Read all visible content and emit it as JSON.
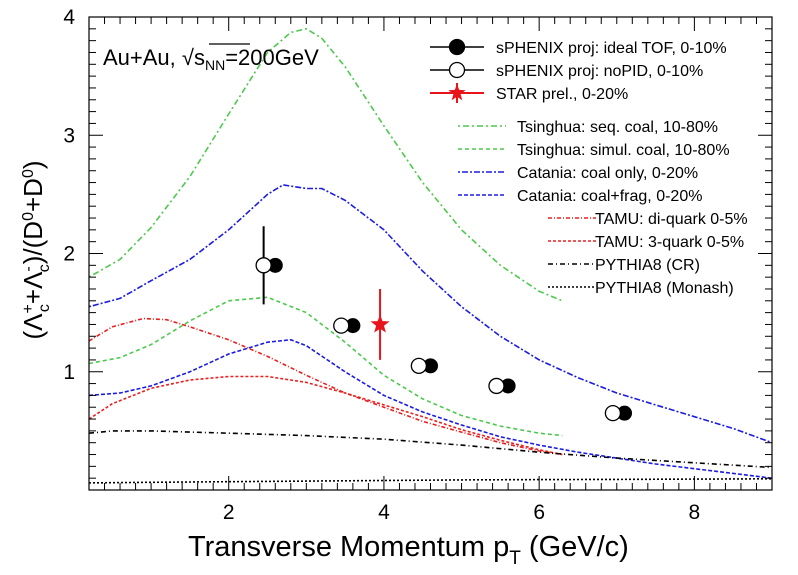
{
  "chart_data": {
    "type": "line",
    "annotation_text": "Au+Au, ",
    "annotation_sqrt": "√",
    "annotation_s": "s",
    "annotation_sub": "NN",
    "annotation_energy": "=200GeV",
    "xlabel": {
      "main": "Transverse Momentum p",
      "sub": "T",
      "unit": " (GeV/c)"
    },
    "ylabel": "(Λc⁺+Λc⁻)/(D⁰+D⁰)",
    "xlim": [
      0.2,
      9.0
    ],
    "ylim": [
      0.0,
      4.0
    ],
    "x_ticks": [
      2,
      4,
      6,
      8
    ],
    "y_ticks": [
      1,
      2,
      3,
      4
    ],
    "legend_position": "top-right",
    "series": [
      {
        "name": "sPHENIX proj: ideal TOF, 0-10%",
        "kind": "marker",
        "marker": "filled-circle",
        "color": "#000000",
        "x": [
          2.6,
          3.6,
          4.6,
          5.6,
          7.1
        ],
        "y": [
          1.9,
          1.39,
          1.05,
          0.88,
          0.65
        ]
      },
      {
        "name": "sPHENIX proj: noPID, 0-10%",
        "kind": "marker",
        "marker": "open-circle",
        "color": "#000000",
        "x": [
          2.45,
          3.45,
          4.45,
          5.45,
          6.95
        ],
        "y": [
          1.9,
          1.39,
          1.05,
          0.88,
          0.65
        ],
        "yerr_low": [
          0.33,
          0,
          0,
          0,
          0
        ],
        "yerr_high": [
          0.33,
          0,
          0,
          0,
          0
        ]
      },
      {
        "name": "STAR prel., 0-20%",
        "kind": "marker",
        "marker": "star",
        "color": "#e8141c",
        "x": [
          3.95
        ],
        "y": [
          1.4
        ],
        "yerr_low": [
          0.3
        ],
        "yerr_high": [
          0.3
        ]
      },
      {
        "name": "Tsinghua: seq. coal, 10-80%",
        "kind": "curve",
        "color": "#4cc94c",
        "dash": "2,3,6,3",
        "x": [
          0.2,
          0.6,
          1.0,
          1.5,
          2.0,
          2.5,
          2.8,
          3.0,
          3.2,
          3.5,
          4.0,
          4.5,
          5.0,
          5.5,
          6.0,
          6.3
        ],
        "y": [
          1.8,
          1.95,
          2.22,
          2.65,
          3.18,
          3.7,
          3.87,
          3.9,
          3.82,
          3.58,
          3.08,
          2.6,
          2.2,
          1.9,
          1.68,
          1.6
        ]
      },
      {
        "name": "Tsinghua: simul. coal, 10-80%",
        "kind": "curve",
        "color": "#4cc94c",
        "dash": "4,3",
        "x": [
          0.2,
          0.6,
          1.0,
          1.5,
          2.0,
          2.5,
          3.0,
          3.5,
          4.0,
          4.5,
          5.0,
          5.5,
          6.0,
          6.3
        ],
        "y": [
          1.07,
          1.12,
          1.23,
          1.43,
          1.6,
          1.63,
          1.5,
          1.25,
          0.97,
          0.77,
          0.63,
          0.54,
          0.48,
          0.46
        ]
      },
      {
        "name": "Catania: coal only, 0-20%",
        "kind": "curve",
        "color": "#1c1ce0",
        "dash": "2,2,6,2",
        "x": [
          0.2,
          0.6,
          1.0,
          1.5,
          2.0,
          2.5,
          2.7,
          3.0,
          3.2,
          3.5,
          4.0,
          4.5,
          5.0,
          5.5,
          6.0,
          6.5,
          7.0,
          7.5,
          8.0,
          8.5,
          9.0
        ],
        "y": [
          1.55,
          1.62,
          1.77,
          1.95,
          2.2,
          2.5,
          2.58,
          2.55,
          2.55,
          2.45,
          2.2,
          1.85,
          1.55,
          1.3,
          1.1,
          0.95,
          0.82,
          0.72,
          0.62,
          0.52,
          0.4
        ]
      },
      {
        "name": "Catania: coal+frag, 0-20%",
        "kind": "curve",
        "color": "#1c1ce0",
        "dash": "4,2",
        "x": [
          0.2,
          0.6,
          1.0,
          1.5,
          2.0,
          2.5,
          2.8,
          3.0,
          3.5,
          4.0,
          4.5,
          5.0,
          5.5,
          6.0,
          6.5,
          7.0,
          7.5,
          8.0,
          8.5,
          9.0
        ],
        "y": [
          0.8,
          0.82,
          0.88,
          1.0,
          1.15,
          1.25,
          1.27,
          1.22,
          1.0,
          0.8,
          0.66,
          0.55,
          0.45,
          0.38,
          0.32,
          0.27,
          0.22,
          0.18,
          0.14,
          0.1
        ]
      },
      {
        "name": "TAMU: di-quark 0-5%",
        "kind": "curve",
        "color": "#e82020",
        "dash": "4,2,1,2",
        "x": [
          0.2,
          0.5,
          0.9,
          1.2,
          1.5,
          2.0,
          2.5,
          3.0,
          3.5,
          4.0,
          4.5,
          5.0,
          5.5,
          6.0,
          6.3
        ],
        "y": [
          1.26,
          1.38,
          1.45,
          1.44,
          1.38,
          1.27,
          1.13,
          0.97,
          0.82,
          0.7,
          0.58,
          0.49,
          0.4,
          0.33,
          0.3
        ]
      },
      {
        "name": "TAMU: 3-quark 0-5%",
        "kind": "curve",
        "color": "#e82020",
        "dash": "3,2",
        "x": [
          0.2,
          0.5,
          1.0,
          1.5,
          2.0,
          2.5,
          3.0,
          3.5,
          4.0,
          4.5,
          5.0,
          5.5,
          6.0,
          6.3
        ],
        "y": [
          0.6,
          0.73,
          0.86,
          0.93,
          0.96,
          0.96,
          0.91,
          0.82,
          0.72,
          0.62,
          0.51,
          0.42,
          0.34,
          0.3
        ]
      },
      {
        "name": "PYTHIA8 (CR)",
        "kind": "curve",
        "color": "#000000",
        "dash": "5,3,1,3",
        "x": [
          0.2,
          0.5,
          1.0,
          2.0,
          3.0,
          4.0,
          5.0,
          6.0,
          7.0,
          8.0,
          9.0
        ],
        "y": [
          0.48,
          0.5,
          0.5,
          0.48,
          0.46,
          0.43,
          0.38,
          0.32,
          0.27,
          0.23,
          0.19
        ]
      },
      {
        "name": "PYTHIA8 (Monash)",
        "kind": "curve",
        "color": "#000000",
        "dash": "2,2",
        "x": [
          0.2,
          1.0,
          2.0,
          3.0,
          4.0,
          5.0,
          6.0,
          7.0,
          8.0,
          9.0
        ],
        "y": [
          0.06,
          0.065,
          0.07,
          0.075,
          0.08,
          0.085,
          0.088,
          0.09,
          0.092,
          0.095
        ]
      }
    ]
  }
}
